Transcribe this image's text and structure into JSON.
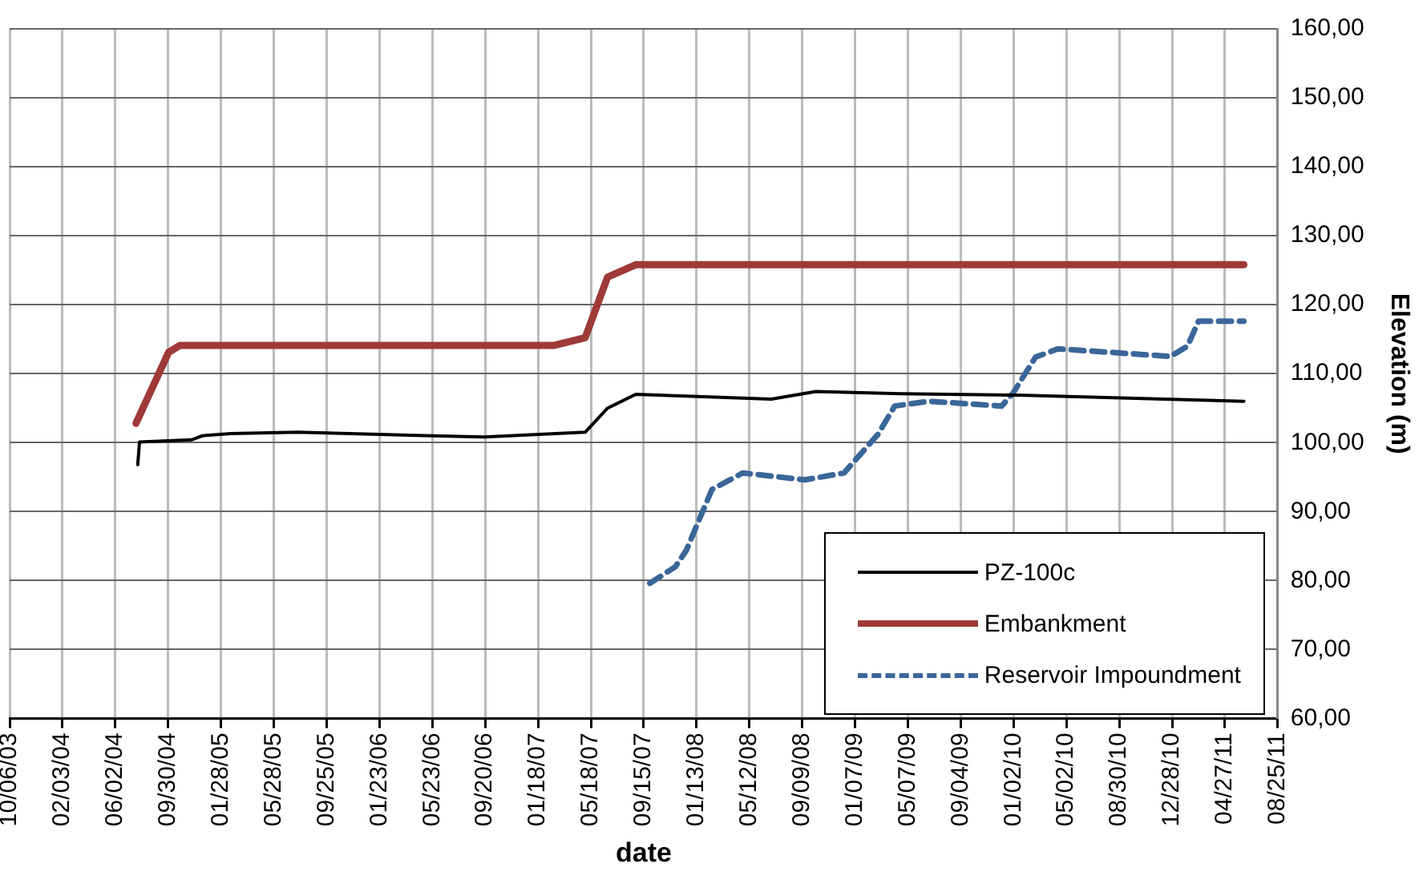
{
  "chart_data": {
    "type": "line",
    "xlabel": "date",
    "ylabel": "Elevation (m)",
    "xlim": [
      "2003-10-06",
      "2011-08-25"
    ],
    "xticks": [
      {
        "value": "2003-10-06",
        "label": "10/06/03"
      },
      {
        "value": "2004-02-03",
        "label": "02/03/04"
      },
      {
        "value": "2004-06-02",
        "label": "06/02/04"
      },
      {
        "value": "2004-09-30",
        "label": "09/30/04"
      },
      {
        "value": "2005-01-28",
        "label": "01/28/05"
      },
      {
        "value": "2005-05-28",
        "label": "05/28/05"
      },
      {
        "value": "2005-09-25",
        "label": "09/25/05"
      },
      {
        "value": "2006-01-23",
        "label": "01/23/06"
      },
      {
        "value": "2006-05-23",
        "label": "05/23/06"
      },
      {
        "value": "2006-09-20",
        "label": "09/20/06"
      },
      {
        "value": "2007-01-18",
        "label": "01/18/07"
      },
      {
        "value": "2007-05-18",
        "label": "05/18/07"
      },
      {
        "value": "2007-09-15",
        "label": "09/15/07"
      },
      {
        "value": "2008-01-13",
        "label": "01/13/08"
      },
      {
        "value": "2008-05-12",
        "label": "05/12/08"
      },
      {
        "value": "2008-09-09",
        "label": "09/09/08"
      },
      {
        "value": "2009-01-07",
        "label": "01/07/09"
      },
      {
        "value": "2009-05-07",
        "label": "05/07/09"
      },
      {
        "value": "2009-09-04",
        "label": "09/04/09"
      },
      {
        "value": "2010-01-02",
        "label": "01/02/10"
      },
      {
        "value": "2010-05-02",
        "label": "05/02/10"
      },
      {
        "value": "2010-08-30",
        "label": "08/30/10"
      },
      {
        "value": "2010-12-28",
        "label": "12/28/10"
      },
      {
        "value": "2011-04-27",
        "label": "04/27/11"
      },
      {
        "value": "2011-08-25",
        "label": "08/25/11"
      }
    ],
    "ylim": [
      60,
      160
    ],
    "yticks": [
      {
        "value": 60,
        "label": "60,00"
      },
      {
        "value": 70,
        "label": "70,00"
      },
      {
        "value": 80,
        "label": "80,00"
      },
      {
        "value": 90,
        "label": "90,00"
      },
      {
        "value": 100,
        "label": "100,00"
      },
      {
        "value": 110,
        "label": "110,00"
      },
      {
        "value": 120,
        "label": "120,00"
      },
      {
        "value": 130,
        "label": "130,00"
      },
      {
        "value": 140,
        "label": "140,00"
      },
      {
        "value": 150,
        "label": "150,00"
      },
      {
        "value": 160,
        "label": "160,00"
      }
    ],
    "grid": true,
    "legend": "bottom right",
    "marker": "none",
    "series": [
      {
        "name": "PZ-100c",
        "color": "#000000",
        "line_style": "solid",
        "x": [
          "2004-07-23",
          "2004-07-27",
          "2004-11-22",
          "2004-12-17",
          "2005-02-19",
          "2005-07-22",
          "2006-09-17",
          "2007-05-05",
          "2007-06-25",
          "2007-08-28",
          "2008-07-01",
          "2008-10-10",
          "2009-04-20",
          "2010-01-01",
          "2011-06-09"
        ],
        "values": [
          96.8,
          100.1,
          100.4,
          101.0,
          101.3,
          101.5,
          100.8,
          101.5,
          105.0,
          107.0,
          106.3,
          107.4,
          107.1,
          106.9,
          106.0
        ]
      },
      {
        "name": "Embankment",
        "color": "#9e3a38",
        "line_style": "solid",
        "x": [
          "2004-07-19",
          "2004-10-01",
          "2004-10-27",
          "2007-02-24",
          "2007-05-05",
          "2007-06-25",
          "2007-08-28",
          "2011-06-09"
        ],
        "values": [
          102.8,
          113.1,
          114.1,
          114.1,
          115.2,
          124.0,
          125.8,
          125.8
        ]
      },
      {
        "name": "Reservoir Impoundment",
        "color": "#3a6699",
        "line_style": "dashed",
        "x": [
          "2007-09-29",
          "2007-11-26",
          "2007-12-21",
          "2008-02-17",
          "2008-04-27",
          "2008-09-15",
          "2008-12-13",
          "2009-02-28",
          "2009-04-07",
          "2009-06-23",
          "2009-12-06",
          "2010-01-01",
          "2010-02-21",
          "2010-04-13",
          "2010-12-25",
          "2011-02-01",
          "2011-02-26",
          "2011-06-09"
        ],
        "values": [
          79.6,
          82.0,
          84.4,
          93.2,
          95.6,
          94.6,
          95.6,
          101.2,
          105.3,
          106.0,
          105.3,
          107.2,
          112.4,
          113.6,
          112.5,
          114.0,
          117.6,
          117.6
        ]
      }
    ]
  }
}
